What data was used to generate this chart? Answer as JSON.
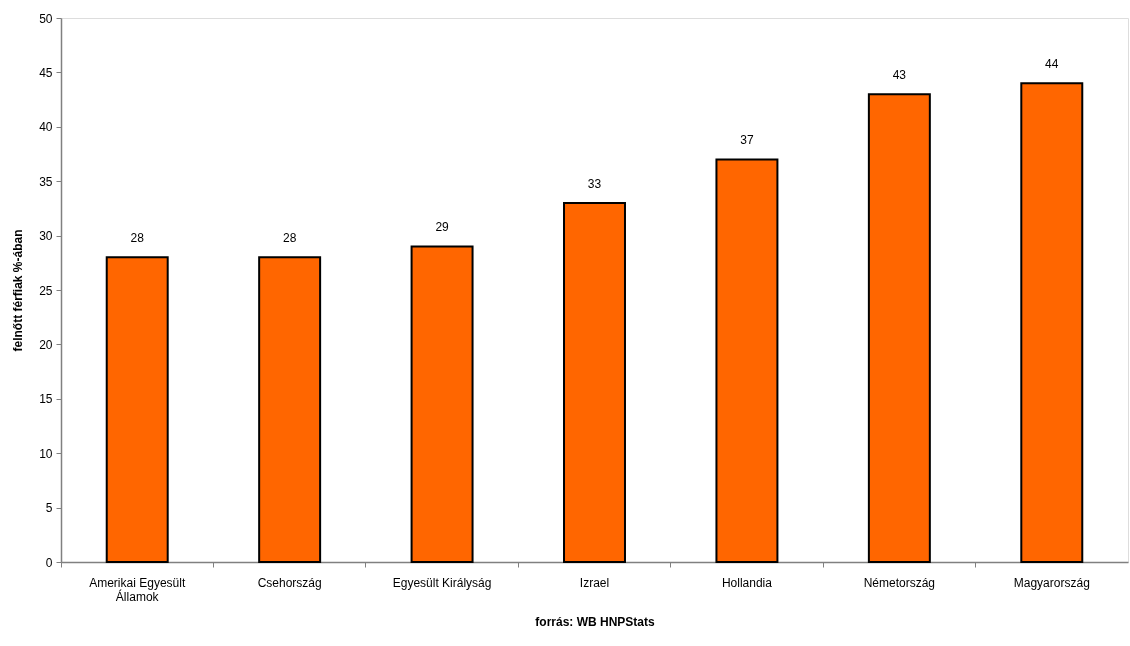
{
  "chart_data": {
    "type": "bar",
    "ylabel": "felnőtt férfiak %-ában",
    "xlabel": "forrás: WB HNPStats",
    "categories": [
      "Amerikai Egyesült Államok",
      "Csehország",
      "Egyesült Királyság",
      "Izrael",
      "Hollandia",
      "Németország",
      "Magyarország"
    ],
    "values": [
      28,
      28,
      29,
      33,
      37,
      43,
      44
    ],
    "color": "#ff6600",
    "data_labels": true,
    "ylim": [
      0,
      50
    ],
    "yticks": [
      0,
      5,
      10,
      15,
      20,
      25,
      30,
      35,
      40,
      45,
      50
    ]
  }
}
